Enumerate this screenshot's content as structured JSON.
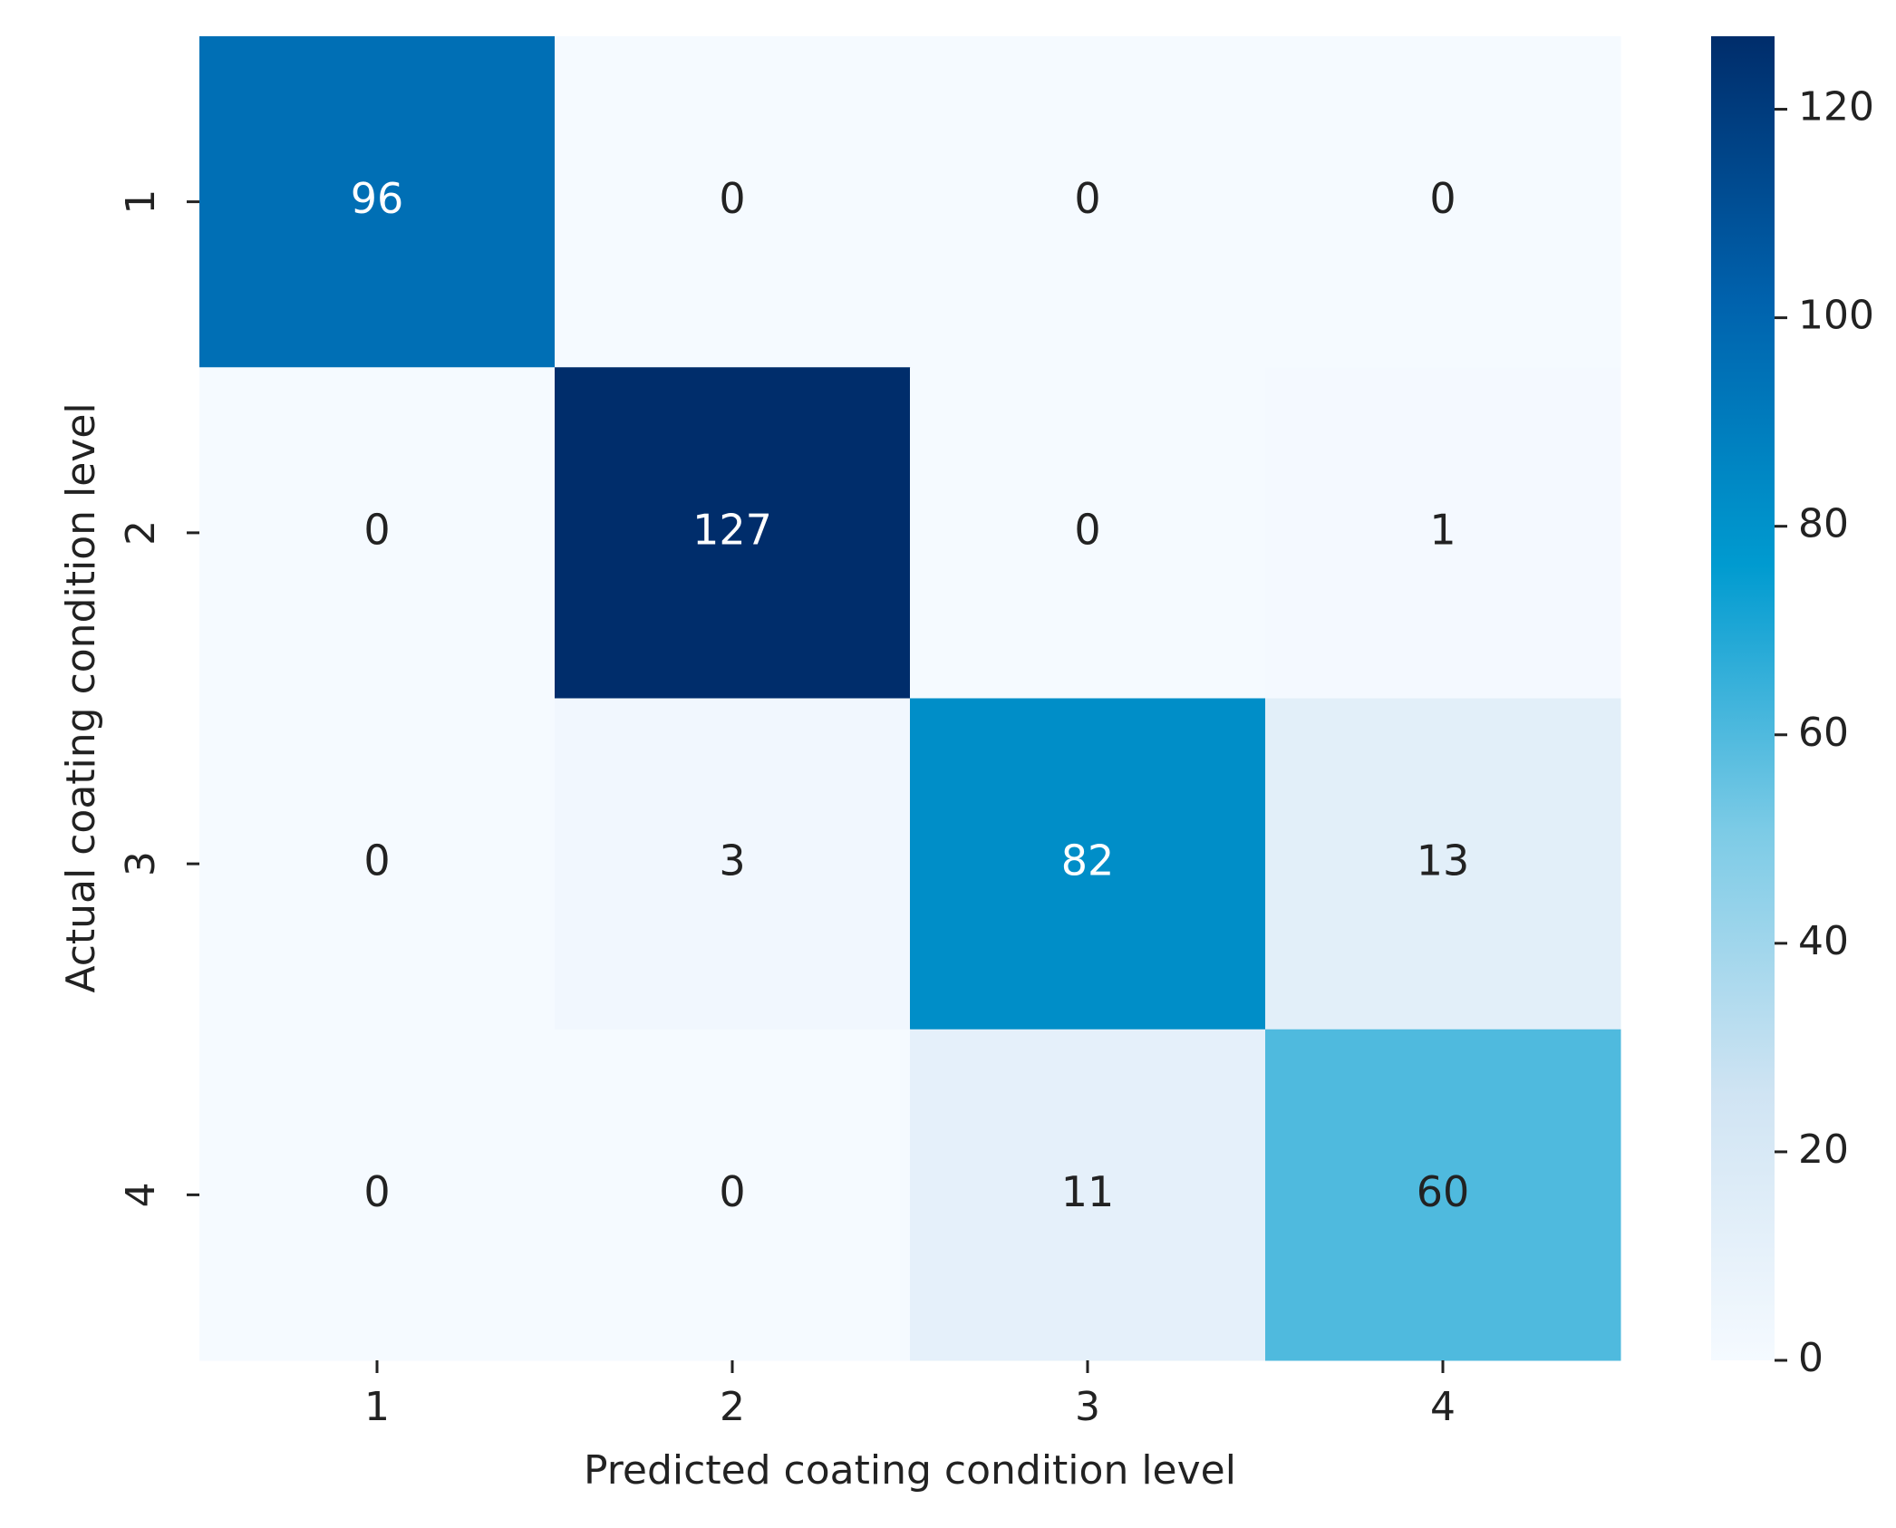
{
  "chart_data": {
    "type": "heatmap",
    "xlabel": "Predicted coating condition level",
    "ylabel": "Actual coating condition level",
    "x_categories": [
      "1",
      "2",
      "3",
      "4"
    ],
    "y_categories": [
      "1",
      "2",
      "3",
      "4"
    ],
    "values": [
      [
        96,
        0,
        0,
        0
      ],
      [
        0,
        127,
        0,
        1
      ],
      [
        0,
        3,
        82,
        13
      ],
      [
        0,
        0,
        11,
        60
      ]
    ],
    "colorscale": [
      "#f5faff",
      "#d0e4f3",
      "#7ccbe6",
      "#009bd0",
      "#0062ad",
      "#002d6b"
    ],
    "zlim": [
      0,
      127
    ],
    "colorbar_ticks": [
      0,
      20,
      40,
      60,
      80,
      100,
      120
    ]
  }
}
